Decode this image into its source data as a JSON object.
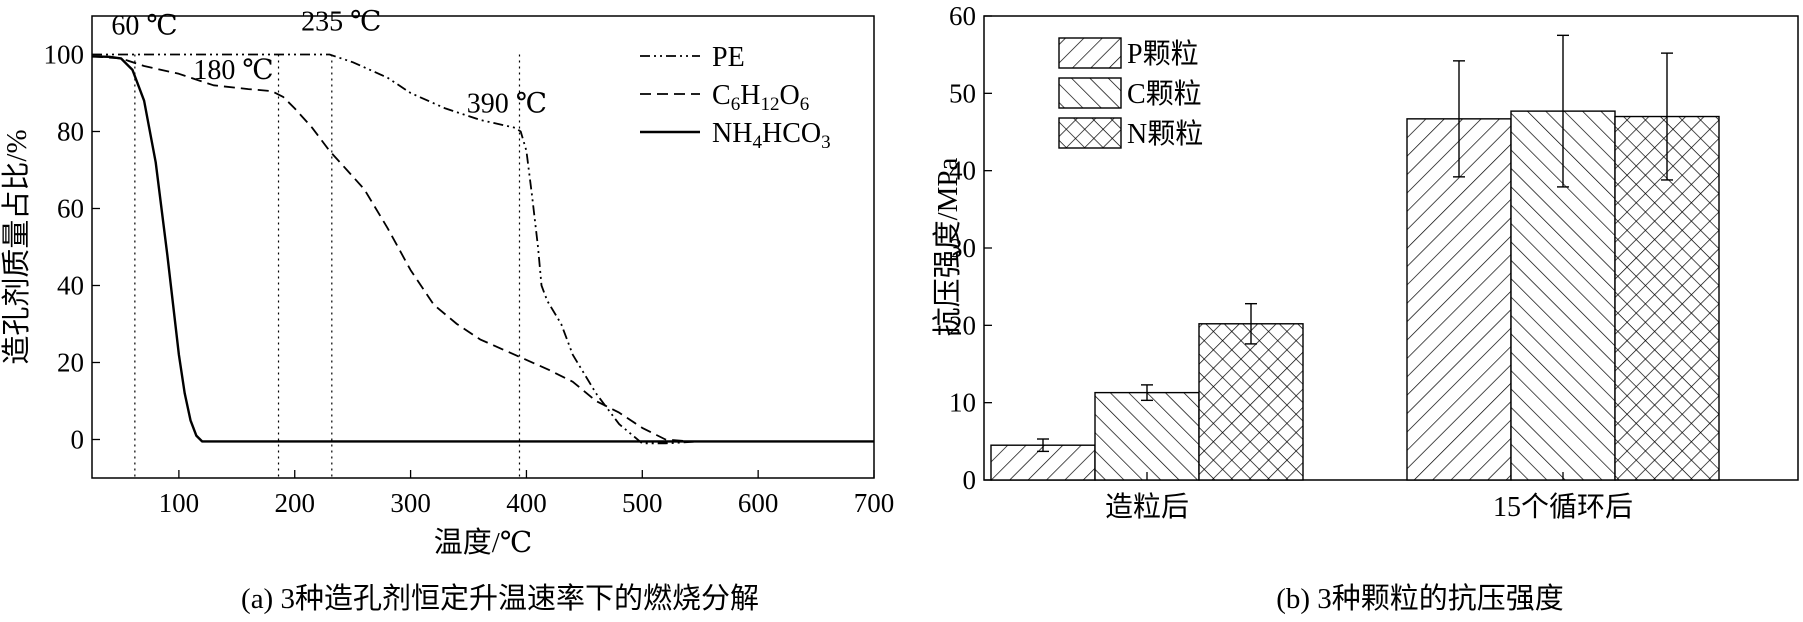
{
  "figure": {
    "caption_a": "(a)  3种造孔剂恒定升温速率下的燃烧分解",
    "caption_b": "(b)  3种颗粒的抗压强度"
  },
  "chart_data": [
    {
      "id": "a",
      "type": "line",
      "xlabel": "温度/℃",
      "ylabel": "造孔剂质量占比/%",
      "xlim": [
        25,
        700
      ],
      "ylim": [
        -10,
        110
      ],
      "xticks": [
        100,
        200,
        300,
        400,
        500,
        600,
        700
      ],
      "yticks": [
        0,
        20,
        40,
        60,
        80,
        100
      ],
      "grid": false,
      "legend_position": "top-right",
      "annotations": [
        {
          "text": "60 ℃",
          "x": 60,
          "y": 100
        },
        {
          "text": "180 ℃",
          "x": 180,
          "y": 91
        },
        {
          "text": "235 ℃",
          "x": 235,
          "y": 101
        },
        {
          "text": "390 ℃",
          "x": 390,
          "y": 81
        }
      ],
      "reference_lines_x": [
        62,
        186,
        232,
        394
      ],
      "series": [
        {
          "name": "PE",
          "legend_label": "PE",
          "dash": "dash-dot-dot",
          "x": [
            25,
            50,
            100,
            150,
            200,
            230,
            250,
            280,
            300,
            330,
            360,
            390,
            395,
            400,
            405,
            410,
            413,
            418,
            430,
            440,
            460,
            480,
            500,
            520,
            550,
            600,
            650,
            700
          ],
          "y": [
            100,
            100,
            100,
            100,
            100,
            100,
            98,
            94,
            90,
            86,
            83,
            81,
            80,
            75,
            63,
            50,
            40,
            36,
            30,
            22,
            12,
            4,
            -1,
            -1,
            -0.5,
            -0.5,
            -0.5,
            -0.5
          ]
        },
        {
          "name": "C6H12O6",
          "legend_label": "C6H12O6",
          "legend_parts": [
            "C",
            "6",
            "H",
            "12",
            "O",
            "6"
          ],
          "dash": "dashed",
          "x": [
            25,
            50,
            70,
            100,
            130,
            160,
            180,
            190,
            200,
            215,
            230,
            245,
            260,
            280,
            300,
            320,
            340,
            360,
            390,
            420,
            440,
            460,
            480,
            500,
            520,
            540,
            560,
            600,
            650,
            700
          ],
          "y": [
            99.5,
            99,
            97,
            95,
            92,
            91,
            90.5,
            89,
            86,
            81,
            75,
            70,
            65,
            55,
            44,
            35,
            30,
            26,
            22,
            18,
            15,
            10,
            7,
            3,
            0,
            -0.5,
            -0.5,
            -0.5,
            -0.5,
            -0.5
          ]
        },
        {
          "name": "NH4HCO3",
          "legend_label": "NH4HCO3",
          "legend_parts": [
            "NH",
            "4",
            "HCO",
            "3"
          ],
          "dash": "solid",
          "x": [
            25,
            40,
            50,
            60,
            70,
            80,
            90,
            100,
            105,
            110,
            115,
            120,
            125,
            150,
            200,
            300,
            400,
            500,
            600,
            700
          ],
          "y": [
            99.5,
            99.4,
            99,
            96,
            88,
            72,
            48,
            22,
            12,
            5,
            1,
            -0.5,
            -0.5,
            -0.5,
            -0.5,
            -0.5,
            -0.5,
            -0.5,
            -0.5,
            -0.5
          ]
        }
      ]
    },
    {
      "id": "b",
      "type": "bar",
      "xlabel": "",
      "ylabel": "抗压强度/MPa",
      "ylim": [
        0,
        60
      ],
      "yticks": [
        0,
        10,
        20,
        30,
        40,
        50,
        60
      ],
      "grid": false,
      "legend_position": "top-left",
      "categories": [
        "造粒后",
        "15个循环后"
      ],
      "series": [
        {
          "name": "P颗粒",
          "hatch": "diagonal-up",
          "values": [
            4.5,
            46.7
          ],
          "errors": [
            0.8,
            7.5
          ]
        },
        {
          "name": "C颗粒",
          "hatch": "diagonal-down",
          "values": [
            11.3,
            47.7
          ],
          "errors": [
            1.0,
            9.8
          ]
        },
        {
          "name": "N颗粒",
          "hatch": "cross",
          "values": [
            20.2,
            47.0
          ],
          "errors": [
            2.6,
            8.2
          ]
        }
      ]
    }
  ]
}
